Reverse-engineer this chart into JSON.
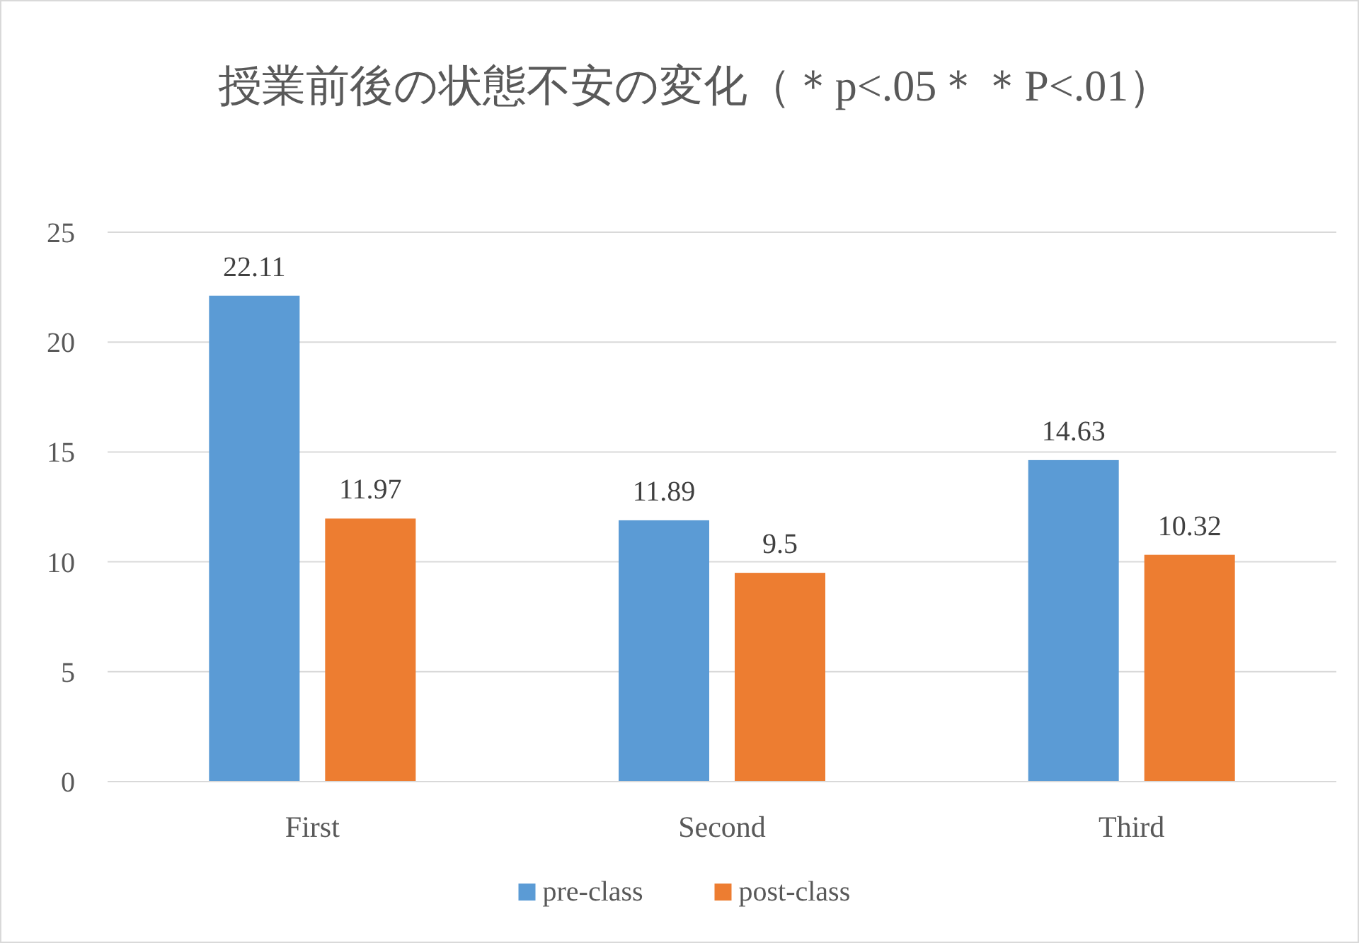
{
  "chart_data": {
    "type": "bar",
    "title": "授業前後の状態不安の変化（＊p<.05＊＊P<.01）",
    "categories": [
      "First",
      "Second",
      "Third"
    ],
    "series": [
      {
        "name": "pre-class",
        "color": "#5b9bd5",
        "values": [
          22.11,
          11.89,
          14.63
        ]
      },
      {
        "name": "post-class",
        "color": "#ed7d31",
        "values": [
          11.97,
          9.5,
          10.32
        ]
      }
    ],
    "ylim": [
      0,
      25
    ],
    "yticks": [
      0,
      5,
      10,
      15,
      20,
      25
    ],
    "grid": "y",
    "data_labels": true,
    "legend": "bottom"
  }
}
